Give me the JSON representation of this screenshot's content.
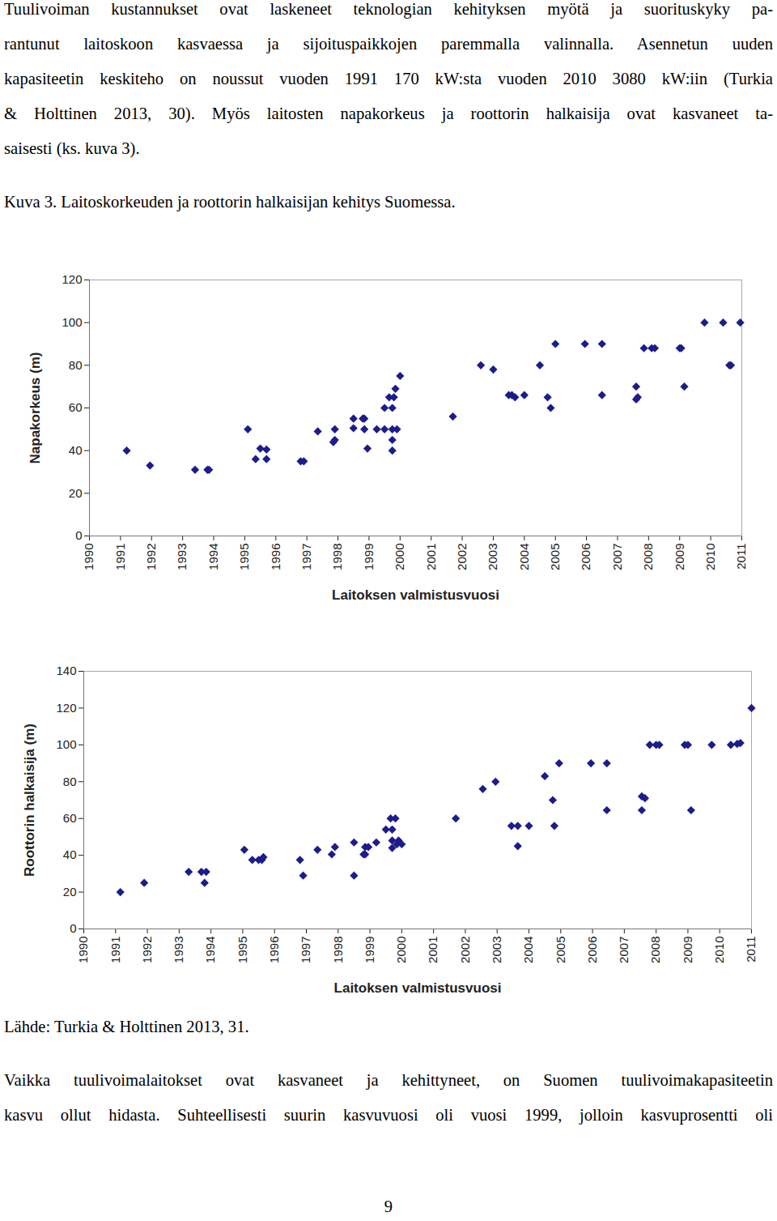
{
  "text_top": [
    "Tuulivoiman kustannukset ovat laskeneet teknologian kehityksen myötä ja suorituskyky pa-",
    "rantunut laitoskoon kasvaessa ja sijoituspaikkojen paremmalla valinnalla. Asennetun uuden",
    "kapasiteetin keskiteho on noussut vuoden 1991 170 kW:sta vuoden 2010 3080 kW:iin (Turkia",
    "& Holttinen 2013, 30). Myös laitosten napakorkeus ja roottorin halkaisija ovat kasvaneet ta-",
    "saisesti (ks. kuva 3)."
  ],
  "caption": "Kuva 3. Laitoskorkeuden ja roottorin halkaisijan kehitys Suomessa.",
  "chart_data": [
    {
      "type": "scatter",
      "x_label": "Laitoksen valmistusvuosi",
      "y_label": "Napakorkeus (m)",
      "x": [
        1991.2,
        1991.95,
        1993.4,
        1993.8,
        1993.85,
        1995.1,
        1995.35,
        1995.5,
        1995.7,
        1995.7,
        1996.8,
        1996.9,
        1997.35,
        1997.85,
        1997.9,
        1997.9,
        1998.5,
        1998.5,
        1998.8,
        1998.85,
        1998.85,
        1998.95,
        1999.25,
        1999.5,
        1999.5,
        1999.65,
        1999.75,
        1999.75,
        1999.75,
        1999.75,
        1999.8,
        1999.85,
        1999.9,
        2000.0,
        2001.7,
        2002.6,
        2003.0,
        2003.5,
        2003.6,
        2003.7,
        2004.0,
        2004.5,
        2004.75,
        2004.85,
        2005.0,
        2005.95,
        2006.5,
        2006.5,
        2007.6,
        2007.6,
        2007.65,
        2007.85,
        2008.1,
        2008.2,
        2009.0,
        2009.05,
        2009.15,
        2009.8,
        2010.4,
        2010.6,
        2010.65,
        2010.95
      ],
      "values": [
        40,
        33,
        31,
        31,
        31,
        50,
        36,
        41,
        40.5,
        36,
        35,
        35,
        49,
        44,
        45,
        50,
        55,
        50.5,
        55,
        55,
        50,
        41,
        50,
        60,
        50,
        65,
        60,
        50,
        45,
        40,
        65,
        69,
        50,
        75,
        56,
        80,
        78,
        66,
        66,
        65,
        66,
        80,
        65,
        60,
        90,
        90,
        90,
        66,
        70,
        64,
        65,
        88,
        88,
        88,
        88,
        88,
        70,
        100,
        100,
        80,
        80,
        100
      ],
      "color": "#1c1c8c",
      "marker": "diamond",
      "xlim": [
        1990,
        2011
      ],
      "xticks": [
        1990,
        1991,
        1992,
        1993,
        1994,
        1995,
        1996,
        1997,
        1998,
        1999,
        2000,
        2001,
        2002,
        2003,
        2004,
        2005,
        2006,
        2007,
        2008,
        2009,
        2010,
        2011
      ],
      "ylim": [
        0,
        120
      ],
      "yticks": [
        0,
        20,
        40,
        60,
        80,
        100,
        120
      ],
      "grid": false
    },
    {
      "type": "scatter",
      "x_label": "Laitoksen valmistusvuosi",
      "y_label": "Roottorin halkaisija (m)",
      "x": [
        1991.15,
        1991.9,
        1993.3,
        1993.7,
        1993.85,
        1993.8,
        1995.05,
        1995.3,
        1995.5,
        1995.6,
        1995.65,
        1996.8,
        1996.9,
        1997.35,
        1997.8,
        1997.9,
        1998.5,
        1998.5,
        1998.8,
        1998.85,
        1998.85,
        1998.95,
        1999.2,
        1999.5,
        1999.7,
        1999.65,
        1999.8,
        1999.7,
        1999.7,
        1999.85,
        1999.9,
        2000.0,
        2001.7,
        2002.55,
        2002.95,
        2003.45,
        2003.65,
        2003.65,
        2004.0,
        2004.5,
        2004.75,
        2004.8,
        2004.95,
        2005.95,
        2006.45,
        2006.45,
        2007.55,
        2007.65,
        2007.55,
        2007.8,
        2008.0,
        2008.1,
        2008.9,
        2009.0,
        2009.1,
        2009.75,
        2010.35,
        2010.55,
        2010.65,
        2011.0
      ],
      "values": [
        20,
        25,
        31,
        31,
        31,
        25,
        43,
        37.5,
        37.5,
        37.5,
        39,
        37.5,
        29,
        43,
        40.5,
        44.5,
        47,
        29,
        40.5,
        40.5,
        44.5,
        44.5,
        47,
        54,
        54,
        60,
        60,
        48,
        44,
        46,
        48,
        46,
        60,
        76,
        80,
        56,
        56,
        45,
        56,
        83,
        70,
        56,
        90,
        90,
        90,
        64.5,
        72,
        71,
        64.5,
        100,
        100,
        100,
        100,
        100,
        64.5,
        100,
        100,
        100.5,
        101,
        120
      ],
      "color": "#1c1c8c",
      "marker": "diamond",
      "xlim": [
        1990,
        2011
      ],
      "xticks": [
        1990,
        1991,
        1992,
        1993,
        1994,
        1995,
        1996,
        1997,
        1998,
        1999,
        2000,
        2001,
        2002,
        2003,
        2004,
        2005,
        2006,
        2007,
        2008,
        2009,
        2010,
        2011
      ],
      "ylim": [
        0,
        140
      ],
      "yticks": [
        0,
        20,
        40,
        60,
        80,
        100,
        120,
        140
      ],
      "grid": false
    }
  ],
  "source": "Lähde: Turkia & Holttinen 2013, 31.",
  "text_bottom": [
    "Vaikka tuulivoimalaitokset ovat kasvaneet ja kehittyneet, on Suomen tuulivoimakapasiteetin",
    "kasvu ollut hidasta. Suhteellisesti suurin kasvuvuosi oli vuosi 1999, jolloin kasvuprosentti oli"
  ],
  "page_number": "9"
}
